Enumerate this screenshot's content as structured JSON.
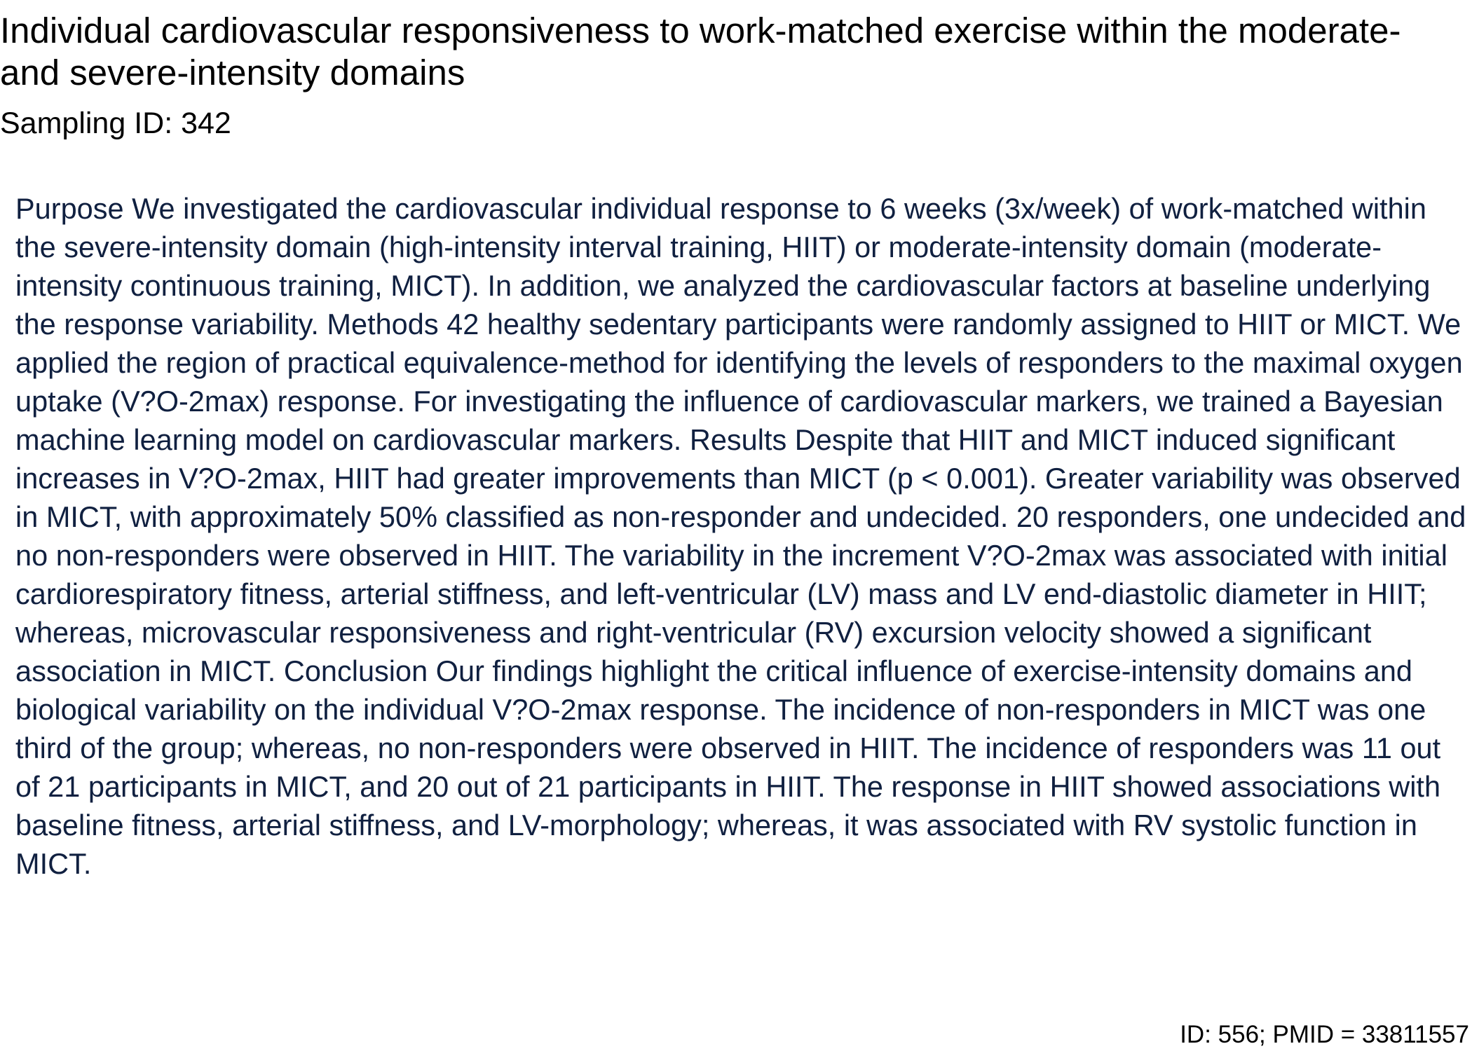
{
  "document": {
    "title": "Individual cardiovascular responsiveness to work-matched exercise within the moderate- and severe-intensity domains",
    "sampling_id": "Sampling ID: 342",
    "abstract": "Purpose We investigated the cardiovascular individual response to 6 weeks (3x/week) of work-matched within the severe-intensity domain (high-intensity interval training, HIIT) or moderate-intensity domain (moderate-intensity continuous training, MICT). In addition, we analyzed the cardiovascular factors at baseline underlying the response variability. Methods 42 healthy sedentary participants were randomly assigned to HIIT or MICT. We applied the region of practical equivalence-method for identifying the levels of responders to the maximal oxygen uptake (V?O-2max) response. For investigating the influence of cardiovascular markers, we trained a Bayesian machine learning model on cardiovascular markers. Results Despite that HIIT and MICT induced significant increases in V?O-2max, HIIT had greater improvements than MICT (p < 0.001). Greater variability was observed in MICT, with approximately 50% classified as non-responder and undecided. 20 responders, one undecided and no non-responders were observed in HIIT. The variability in the increment V?O-2max was associated with initial cardiorespiratory fitness, arterial stiffness, and left-ventricular (LV) mass and LV end-diastolic diameter in HIIT; whereas, microvascular responsiveness and right-ventricular (RV) excursion velocity showed a significant association in MICT. Conclusion Our findings highlight the critical influence of exercise-intensity domains and biological variability on the individual V?O-2max response. The incidence of non-responders in MICT was one third of the group; whereas, no non-responders were observed in HIIT. The incidence of responders was 11 out of 21 participants in MICT, and 20 out of 21 participants in HIIT. The response in HIIT showed associations with baseline fitness, arterial stiffness, and LV-morphology; whereas, it was associated with RV systolic function in MICT.",
    "footer": "ID: 556; PMID = 33811557"
  }
}
